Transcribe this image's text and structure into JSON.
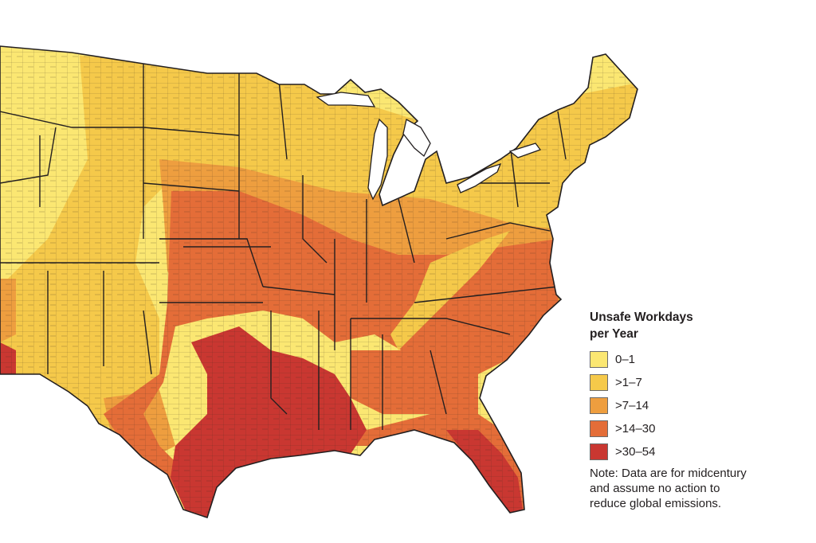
{
  "legend": {
    "title_line1": "Unsafe Workdays",
    "title_line2": "per Year",
    "items": [
      {
        "label": "0–1",
        "color": "#fbe772"
      },
      {
        "label": ">1–7",
        "color": "#f5c94a"
      },
      {
        "label": ">7–14",
        "color": "#ee9e3f"
      },
      {
        "label": ">14–30",
        "color": "#e46d38"
      },
      {
        "label": ">30–54",
        "color": "#c93731"
      }
    ],
    "note_line1": "Note: Data are for midcentury",
    "note_line2": "and assume no action to",
    "note_line3": "reduce global emissions."
  },
  "map": {
    "border_color": "#231f20",
    "background": "#ffffff"
  }
}
